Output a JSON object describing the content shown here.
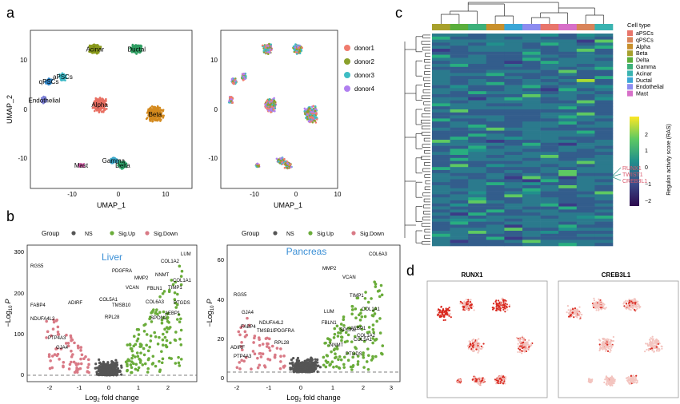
{
  "panels": {
    "a": {
      "label": "a",
      "left": {
        "xlabel": "UMAP_1",
        "ylabel": "UMAP_2",
        "xticks": [
          "-10",
          "0",
          "10"
        ],
        "yticks": [
          "10",
          "0",
          "-10"
        ],
        "clusters": [
          {
            "name": "Acinar",
            "color": "#8a9a1c",
            "x": -5,
            "y": 13
          },
          {
            "name": "Ductal",
            "color": "#2f9e62",
            "x": 4,
            "y": 13
          },
          {
            "name": "qPSCs",
            "color": "#2c83c7",
            "x": -15,
            "y": 6
          },
          {
            "name": "aPSCs",
            "color": "#3bb8c6",
            "x": -12,
            "y": 7
          },
          {
            "name": "Endothelial",
            "color": "#7b7fd6",
            "x": -16,
            "y": 2
          },
          {
            "name": "Alpha",
            "color": "#e86f62",
            "x": -4,
            "y": 1
          },
          {
            "name": "Beta",
            "color": "#d48a1e",
            "x": 8,
            "y": -1
          },
          {
            "name": "Gamma",
            "color": "#3aa7c9",
            "x": -1,
            "y": -11
          },
          {
            "name": "Delta",
            "color": "#30a86e",
            "x": 1,
            "y": -12
          },
          {
            "name": "Mast",
            "color": "#d45aa8",
            "x": -8,
            "y": -12
          }
        ]
      },
      "right": {
        "xlabel": "UMAP_1",
        "xticks": [
          "-10",
          "0",
          "10"
        ],
        "yticks": [
          "10",
          "0",
          "-10"
        ],
        "legend": [
          {
            "name": "donor1",
            "color": "#f07c6e"
          },
          {
            "name": "donor2",
            "color": "#8aa02b"
          },
          {
            "name": "donor3",
            "color": "#3ebdc4"
          },
          {
            "name": "donor4",
            "color": "#b07ff0"
          }
        ]
      }
    },
    "b": {
      "label": "b",
      "legend": {
        "title": "Group",
        "items": [
          {
            "name": "NS",
            "color": "#555555"
          },
          {
            "name": "Sig.Up",
            "color": "#6aac3a"
          },
          {
            "name": "Sig.Down",
            "color": "#d97a86"
          }
        ]
      },
      "xlabel_main": "Log",
      "xlabel_sub": "2",
      "xlabel_tail": " fold change",
      "ylabel_main": "−Log",
      "ylabel_sub": "10",
      "ylabel_p": "P",
      "liver": {
        "title": "Liver",
        "xticks": [
          "-2",
          "-1",
          "0",
          "1",
          "2"
        ],
        "yticks": [
          "300",
          "200",
          "100",
          "0"
        ],
        "genes": [
          "RGS5",
          "FABP4",
          "ADIRF",
          "NDUFA4L2",
          "PTP4A3",
          "GJA4",
          "PDGFRA",
          "MMP2",
          "NNMT",
          "COL1A2",
          "LUM",
          "COL1A1",
          "TIMP1",
          "PTGDS",
          "VCAN",
          "FBLN1",
          "COL5A1",
          "TMSB10",
          "COL6A3",
          "AEBP1",
          "RPL28",
          "SPON2"
        ]
      },
      "pancreas": {
        "title": "Pancreas",
        "xticks": [
          "-2",
          "-1",
          "0",
          "1",
          "2",
          "3"
        ],
        "yticks": [
          "60",
          "40",
          "20",
          "0"
        ],
        "genes": [
          "COL6A3",
          "RGS5",
          "GJA4",
          "FABP4",
          "NDUFA4L2",
          "ADIRF",
          "PTP4A3",
          "TMSB10",
          "PDGFRA",
          "RPL28",
          "MMP2",
          "VCAN",
          "TIMP1",
          "COL1A1",
          "LUM",
          "FBLN1",
          "AEBP1",
          "COL5A1",
          "SPON2",
          "NNMT",
          "COL1A2",
          "PTGDS"
        ]
      }
    },
    "c": {
      "label": "c",
      "legend_title": "Cell type",
      "cell_types": [
        {
          "name": "aPSCs",
          "color": "#e8756b"
        },
        {
          "name": "qPSCs",
          "color": "#d9845a"
        },
        {
          "name": "Alpha",
          "color": "#c8902c"
        },
        {
          "name": "Beta",
          "color": "#a7a02c"
        },
        {
          "name": "Delta",
          "color": "#5aae3c"
        },
        {
          "name": "Gamma",
          "color": "#3cb07a"
        },
        {
          "name": "Acinar",
          "color": "#39b3b0"
        },
        {
          "name": "Ductal",
          "color": "#3aa6d6"
        },
        {
          "name": "Endothelial",
          "color": "#8d8cf0"
        },
        {
          "name": "Mast",
          "color": "#d76fc8"
        }
      ],
      "colorbar_title": "Regulon activity score (RAS)",
      "colorbar_ticks": [
        "2",
        "1",
        "0",
        "−1",
        "−2"
      ],
      "highlight_genes": [
        "RUNX1",
        "TWIST1",
        "CREB3L1"
      ]
    },
    "d": {
      "label": "d",
      "maps": [
        {
          "title": "RUNX1"
        },
        {
          "title": "CREB3L1"
        }
      ]
    }
  }
}
